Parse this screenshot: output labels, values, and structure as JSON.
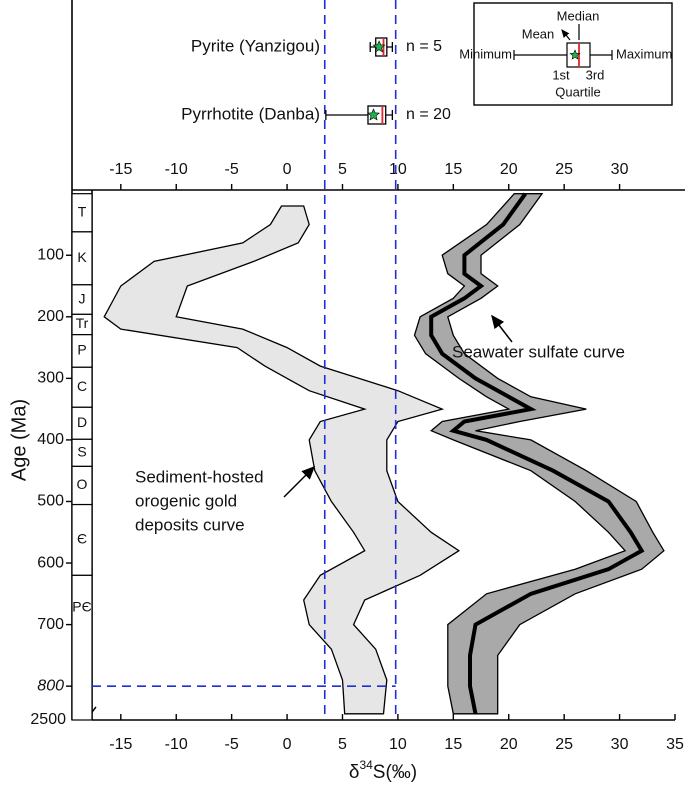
{
  "chart_data": {
    "type": "area-band",
    "ylabel": "Age (Ma)",
    "xlabel_parts": [
      "δ",
      "34",
      "S(‰)"
    ],
    "xlim": [
      -17.6,
      35
    ],
    "xticks": [
      -15,
      -10,
      -5,
      0,
      5,
      10,
      15,
      20,
      25,
      30,
      35
    ],
    "x2ticks": [
      -15,
      -10,
      -5,
      0,
      5,
      10,
      15,
      20,
      25,
      30
    ],
    "ylim": [
      -6,
      855
    ],
    "yticks": [
      100,
      200,
      300,
      400,
      500,
      600,
      700,
      800
    ],
    "axis_break_label": "2500",
    "ref_x": [
      3.4,
      9.8
    ],
    "ref_age": 800,
    "ref_color": "#1f2fd6",
    "bands": [
      {
        "name": "Sediment-hosted orogenic gold deposits curve",
        "color": "#e6e6e6",
        "label_lines": [
          "Sediment-hosted",
          "orogenic gold",
          "deposits curve"
        ],
        "age": [
          20,
          50,
          80,
          110,
          150,
          200,
          220,
          250,
          280,
          320,
          350,
          370,
          400,
          450,
          500,
          550,
          580,
          620,
          660,
          700,
          740,
          790,
          845
        ],
        "lower": [
          -0.5,
          -1.5,
          -4,
          -12,
          -15,
          -16.5,
          -15,
          -4.5,
          -2,
          2,
          7,
          3,
          2,
          2.5,
          4,
          6,
          7,
          3,
          1.5,
          2,
          4,
          5,
          5.2
        ],
        "upper": [
          1.5,
          2,
          1,
          -3,
          -9,
          -10,
          -4,
          0,
          3,
          10,
          14,
          10,
          9,
          9,
          10,
          13,
          15.5,
          12,
          7,
          6,
          8,
          9,
          8.7
        ]
      },
      {
        "name": "Seawater sulfate curve",
        "color": "#a9a9a9",
        "line_color": "#000000",
        "label_lines": [
          "Seawater sulfate curve"
        ],
        "age": [
          0,
          50,
          100,
          130,
          150,
          170,
          200,
          230,
          260,
          300,
          330,
          350,
          370,
          385,
          400,
          450,
          500,
          550,
          580,
          610,
          650,
          700,
          750,
          800,
          845
        ],
        "lower": [
          20.5,
          18,
          14,
          14.5,
          16,
          15,
          12,
          11.5,
          12.5,
          15.5,
          18,
          20,
          14,
          13,
          15,
          22,
          26,
          29,
          30.5,
          26,
          18,
          14.5,
          14.5,
          14.5,
          15
        ],
        "median": [
          21.5,
          19.5,
          16,
          16,
          17.5,
          16,
          13,
          13,
          14,
          17,
          20,
          22,
          16,
          15,
          18,
          24,
          29,
          31,
          32,
          29,
          22,
          17,
          16.5,
          16.5,
          17
        ],
        "upper": [
          23,
          21,
          17.5,
          17.5,
          19,
          17.5,
          14.5,
          15,
          16,
          19,
          22,
          27,
          21,
          17,
          22,
          27,
          31.5,
          33,
          34,
          32,
          26,
          21,
          19,
          19,
          19
        ]
      }
    ],
    "boxplots": [
      {
        "name": "Pyrite (Yanzigou)",
        "n_label": "n = 5",
        "min": 7.5,
        "q1": 8,
        "median": 8.7,
        "mean": 8.3,
        "q3": 9,
        "max": 9.5
      },
      {
        "name": "Pyrrhotite (Danba)",
        "n_label": "n = 20",
        "min": 3.5,
        "q1": 7.3,
        "median": 8.6,
        "mean": 7.8,
        "q3": 8.9,
        "max": 9.5
      }
    ],
    "box_colors": {
      "median": "#e0262b",
      "mean": "#22b14c"
    },
    "legend_box": {
      "median": "Median",
      "mean": "Mean",
      "minimum": "Minimum",
      "maximum": "Maximum",
      "q1": "1st",
      "q3": "3rd",
      "quartile": "Quartile"
    },
    "periods": [
      {
        "name": "T",
        "start": 0,
        "end": 62
      },
      {
        "name": "K",
        "start": 62,
        "end": 148
      },
      {
        "name": "J",
        "start": 148,
        "end": 196
      },
      {
        "name": "Tr",
        "start": 196,
        "end": 229
      },
      {
        "name": "P",
        "start": 229,
        "end": 282
      },
      {
        "name": "C",
        "start": 282,
        "end": 347
      },
      {
        "name": "D",
        "start": 347,
        "end": 399
      },
      {
        "name": "S",
        "start": 399,
        "end": 443
      },
      {
        "name": "O",
        "start": 443,
        "end": 505
      },
      {
        "name": "Є",
        "start": 505,
        "end": 620
      },
      {
        "name": "PЄ",
        "start": 620,
        "end": 855
      }
    ]
  }
}
